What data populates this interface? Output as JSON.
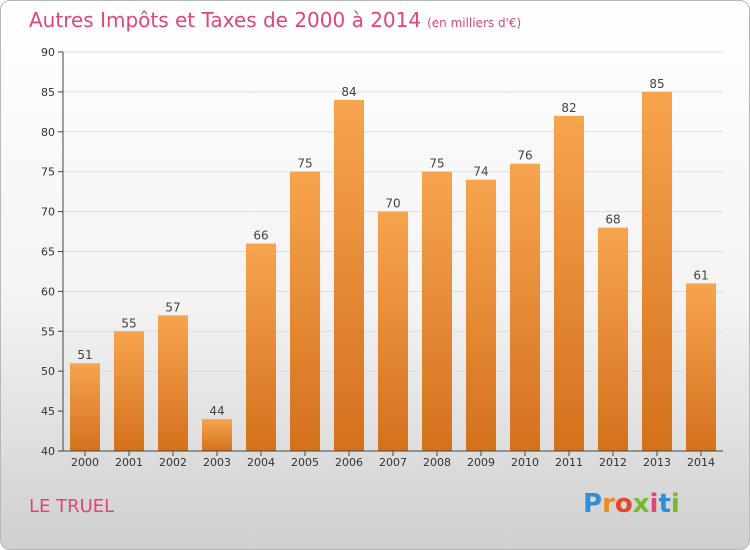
{
  "title": "Autres Impôts et Taxes de 2000 à 2014",
  "title_unit": "(en milliers d'€)",
  "commune": "LE TRUEL",
  "logo_text": "Proxiti",
  "colors": {
    "title": "#e0457b",
    "bar_top": "#f7a44f",
    "bar_bottom": "#d4711b"
  },
  "chart_data": {
    "type": "bar",
    "title": "Autres Impôts et Taxes de 2000 à 2014",
    "xlabel": "",
    "ylabel": "",
    "categories": [
      "2000",
      "2001",
      "2002",
      "2003",
      "2004",
      "2005",
      "2006",
      "2007",
      "2008",
      "2009",
      "2010",
      "2011",
      "2012",
      "2013",
      "2014"
    ],
    "values": [
      51,
      55,
      57,
      44,
      66,
      75,
      84,
      70,
      75,
      74,
      76,
      82,
      68,
      85,
      61
    ],
    "ylim": [
      40,
      90
    ],
    "yticks": [
      40,
      45,
      50,
      55,
      60,
      65,
      70,
      75,
      80,
      85,
      90
    ],
    "grid": true,
    "legend": "none"
  }
}
